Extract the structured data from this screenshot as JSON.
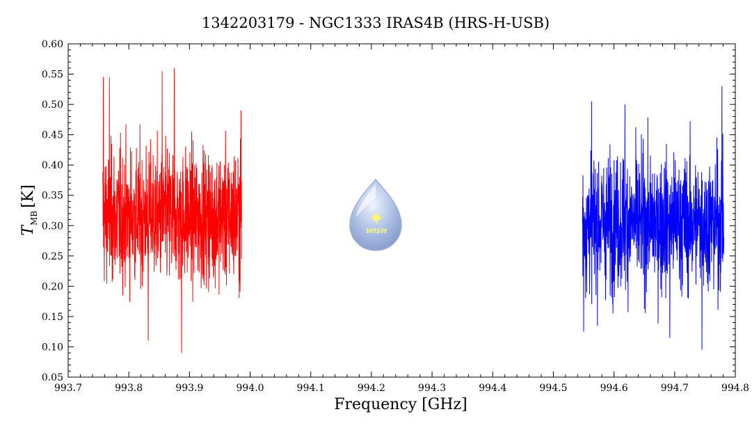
{
  "chart_data": {
    "type": "line",
    "title": "1342203179 - NGC1333 IRAS4B (HRS-H-USB)",
    "xlabel": "Frequency [GHz]",
    "ylabel_main": "T",
    "ylabel_sub": "MB",
    "ylabel_unit": "[K]",
    "xlim": [
      993.7,
      994.8
    ],
    "ylim": [
      0.05,
      0.6
    ],
    "x_ticks": [
      "993.7",
      "993.8",
      "993.9",
      "994.0",
      "994.1",
      "994.2",
      "994.3",
      "994.4",
      "994.5",
      "994.6",
      "994.7",
      "994.8"
    ],
    "y_ticks": [
      "0.05",
      "0.10",
      "0.15",
      "0.20",
      "0.25",
      "0.30",
      "0.35",
      "0.40",
      "0.45",
      "0.50",
      "0.55",
      "0.60"
    ],
    "grid": false,
    "series": [
      {
        "color": "#ff0000",
        "x_range": [
          993.757,
          993.986
        ],
        "mean": 0.315,
        "min": 0.09,
        "max": 0.56,
        "peaks": [
          [
            993.758,
            0.545
          ],
          [
            993.768,
            0.545
          ],
          [
            993.832,
            0.11
          ],
          [
            993.855,
            0.555
          ],
          [
            993.875,
            0.56
          ],
          [
            993.887,
            0.09
          ],
          [
            993.985,
            0.49
          ]
        ]
      },
      {
        "color": "#0000ff",
        "x_range": [
          994.548,
          994.781
        ],
        "mean": 0.305,
        "min": 0.095,
        "max": 0.53,
        "peaks": [
          [
            994.55,
            0.125
          ],
          [
            994.563,
            0.505
          ],
          [
            994.618,
            0.5
          ],
          [
            994.692,
            0.115
          ],
          [
            994.745,
            0.095
          ],
          [
            994.778,
            0.53
          ]
        ]
      }
    ]
  },
  "logo": {
    "text": "WISH"
  }
}
